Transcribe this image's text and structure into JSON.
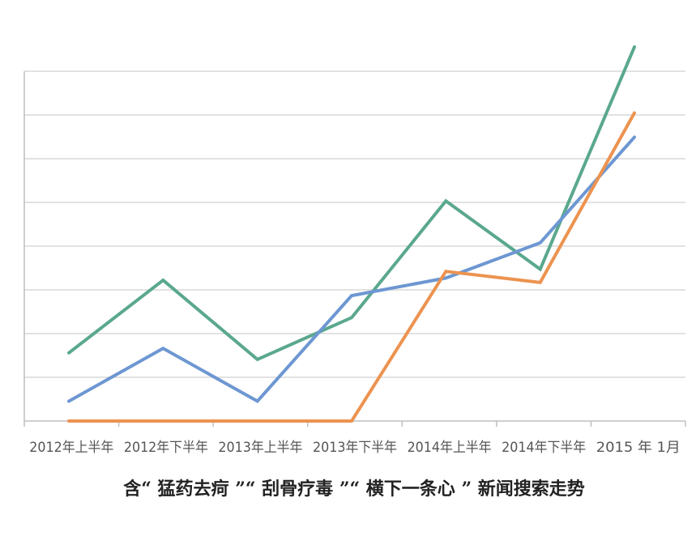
{
  "chart_data": {
    "type": "line",
    "title": "含“ 猛药去疴 ”“ 刮骨疗毒 ”“ 横下一条心 ” 新闻搜索走势",
    "xlabel": "",
    "ylabel": "",
    "categories": [
      "2012年上半年",
      "2012年下半年",
      "2013年上半年",
      "2013年下半年",
      "2014年上半年",
      "2014年下半年",
      "2015 年 1月"
    ],
    "ylim": [
      0,
      8.5
    ],
    "grid": true,
    "legend": "none",
    "series": [
      {
        "color": "#5aa88e",
        "values": [
          1.55,
          3.2,
          1.4,
          2.35,
          5.0,
          3.45,
          8.5
        ]
      },
      {
        "color": "#6d97d2",
        "values": [
          0.45,
          1.65,
          0.45,
          2.85,
          3.25,
          4.05,
          6.45
        ]
      },
      {
        "color": "#ec9350",
        "values": [
          0.0,
          0.0,
          0.0,
          0.0,
          3.4,
          3.15,
          7.0
        ]
      }
    ]
  }
}
